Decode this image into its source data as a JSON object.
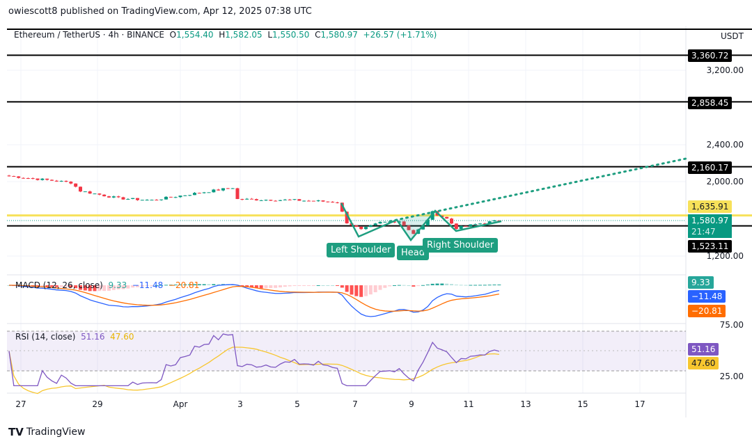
{
  "header": {
    "published": "owiescott8 published on TradingView.com, Apr 12, 2025 07:38 UTC"
  },
  "legend": {
    "symbol": "Ethereum / TetherUS · 4h · BINANCE",
    "o_label": "O",
    "o": "1,554.40",
    "h_label": "H",
    "h": "1,582.05",
    "l_label": "L",
    "l": "1,550.50",
    "c_label": "C",
    "c": "1,580.97",
    "change": "+26.57 (+1.71%)"
  },
  "price_axis": {
    "currency": "USDT",
    "ticks": [
      "3,200.00",
      "2,400.00",
      "2,000.00",
      "1,200.00"
    ]
  },
  "levels": [
    {
      "label": "3,360.72",
      "price": 3360.72,
      "color": "#000000"
    },
    {
      "label": "2,858.45",
      "price": 2858.45,
      "color": "#000000"
    },
    {
      "label": "2,160.17",
      "price": 2160.17,
      "color": "#000000"
    },
    {
      "label": "1,635.91",
      "price": 1635.91,
      "color": "#f7e15a"
    },
    {
      "label": "1,523.11",
      "price": 1523.11,
      "color": "#000000"
    }
  ],
  "last_price": {
    "value": "1,580.97",
    "countdown": "21:47",
    "color": "#089981"
  },
  "pattern_labels": {
    "left": "Left Shoulder",
    "head": "Head",
    "right": "Right Shoulder"
  },
  "macd": {
    "title": "MACD (12, 26, close)",
    "hist": "9.33",
    "macd": "−11.48",
    "signal": "−20.81",
    "colors": {
      "hist": "#26a69a",
      "macd": "#2962ff",
      "signal": "#ff6d00"
    }
  },
  "rsi": {
    "title": "RSI (14, close)",
    "value": "51.16",
    "ma": "47.60",
    "ticks": [
      "75.00",
      "25.00"
    ],
    "colors": {
      "rsi": "#7e57c2",
      "ma": "#f7c62f"
    }
  },
  "time_axis": [
    "27",
    "29",
    "Apr",
    "3",
    "5",
    "7",
    "9",
    "11",
    "13",
    "15",
    "17"
  ],
  "footer": {
    "brand": "TradingView"
  },
  "chart_data": {
    "type": "candlestick",
    "interval": "4h",
    "price_path": [
      [
        "2025-03-26T00",
        2060
      ],
      [
        "2025-03-28T04",
        1990
      ],
      [
        "2025-03-28T12",
        1900
      ],
      [
        "2025-03-29T20",
        1820
      ],
      [
        "2025-03-31T00",
        1800
      ],
      [
        "2025-04-01T16",
        1880
      ],
      [
        "2025-04-02T20",
        1935
      ],
      [
        "2025-04-03T00",
        1810
      ],
      [
        "2025-04-05T00",
        1800
      ],
      [
        "2025-04-06T12",
        1780
      ],
      [
        "2025-04-06T20",
        1560
      ],
      [
        "2025-04-07T08",
        1480
      ],
      [
        "2025-04-08T00",
        1560
      ],
      [
        "2025-04-08T16",
        1575
      ],
      [
        "2025-04-09T04",
        1440
      ],
      [
        "2025-04-09T12",
        1520
      ],
      [
        "2025-04-09T20",
        1670
      ],
      [
        "2025-04-10T08",
        1600
      ],
      [
        "2025-04-10T16",
        1500
      ],
      [
        "2025-04-11T12",
        1550
      ],
      [
        "2025-04-12T04",
        1580
      ]
    ],
    "colors": {
      "up": "#089981",
      "down": "#f23645"
    }
  }
}
